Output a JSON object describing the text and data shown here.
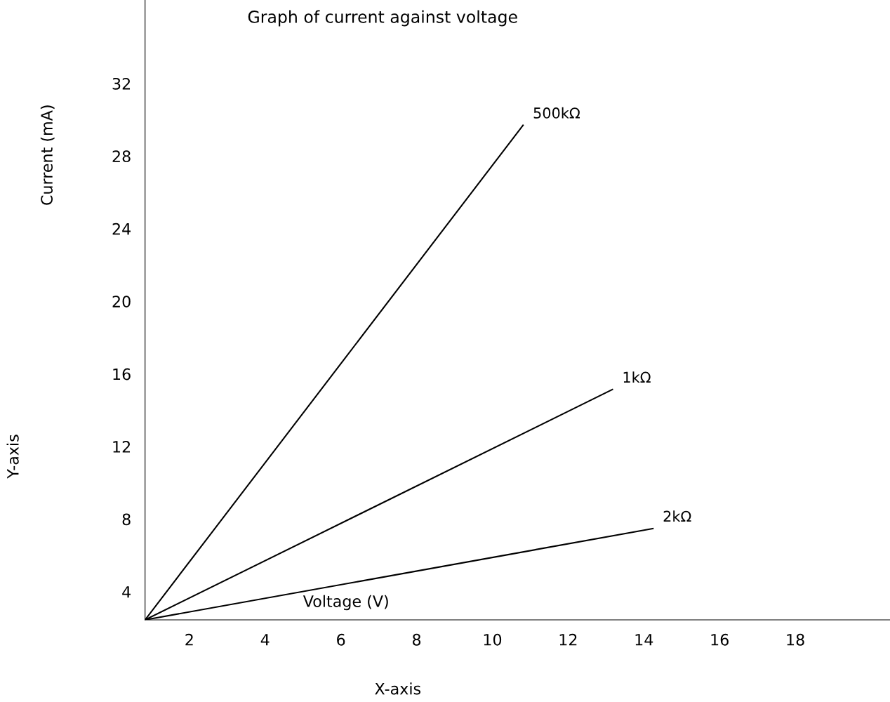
{
  "chart_data": {
    "type": "line",
    "title": "Graph of current against voltage",
    "xlabel": "Voltage (V)",
    "ylabel": "Current (mA)",
    "annotations": [
      "X-axis",
      "Y-axis"
    ],
    "xlim": [
      0.83,
      20.5
    ],
    "ylim": [
      2.45,
      36.6
    ],
    "xticks": [
      2,
      4,
      6,
      8,
      10,
      12,
      14,
      16,
      18
    ],
    "yticks": [
      4,
      8,
      12,
      16,
      20,
      24,
      28,
      32
    ],
    "grid": false,
    "legend": false,
    "marker": "none",
    "line_style": "solid",
    "series": [
      {
        "name": "500kΩ",
        "color": "#000000",
        "x": [
          0.83,
          10.81
        ],
        "values": [
          2.45,
          29.7
        ]
      },
      {
        "name": "1kΩ",
        "color": "#000000",
        "x": [
          0.83,
          13.17
        ],
        "values": [
          2.45,
          15.14
        ]
      },
      {
        "name": "2kΩ",
        "color": "#000000",
        "x": [
          0.83,
          14.24
        ],
        "values": [
          2.45,
          7.48
        ]
      }
    ]
  }
}
